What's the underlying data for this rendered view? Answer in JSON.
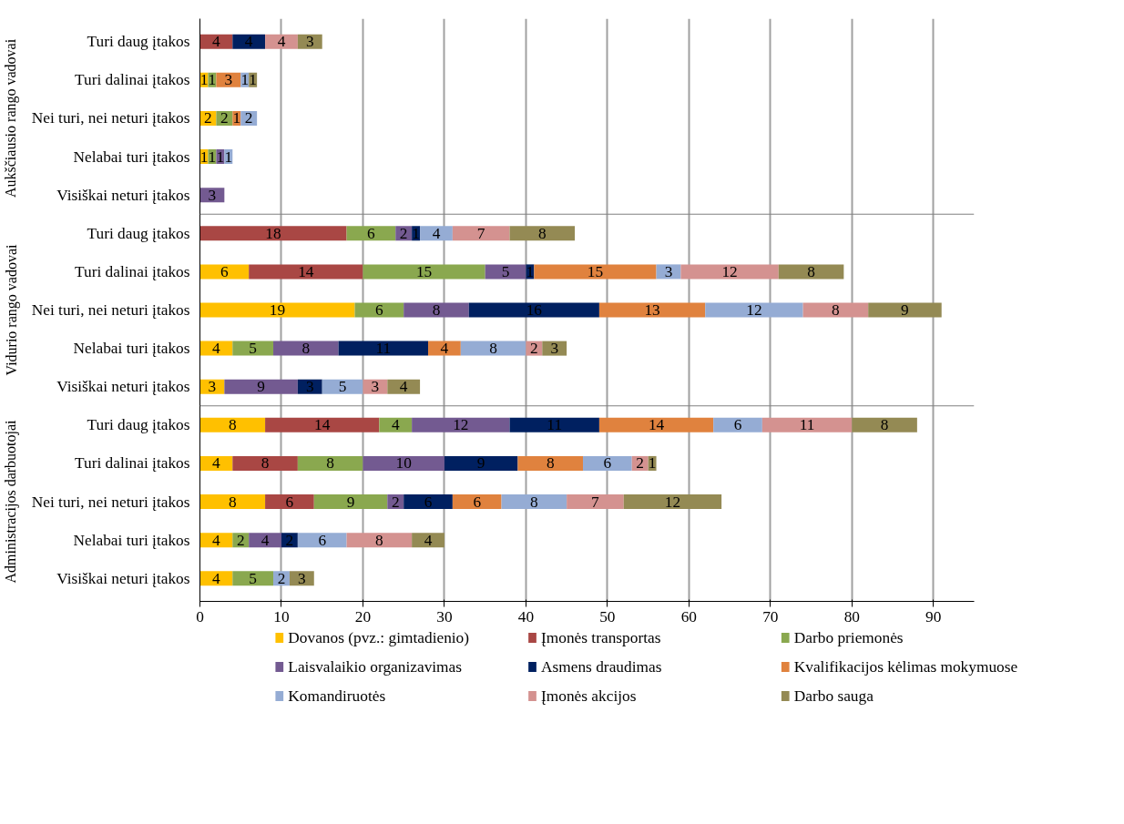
{
  "chart_data": {
    "type": "bar",
    "orientation": "horizontal",
    "stacked": true,
    "data_labels": true,
    "grid": "x",
    "legend": "bottom",
    "categories": [
      "Turi daug įtakos",
      "Turi dalinai įtakos",
      "Nei turi, nei neturi įtakos",
      "Nelabai turi įtakos",
      "Visiškai neturi įtakos",
      "Turi daug įtakos",
      "Turi dalinai įtakos",
      "Nei turi, nei neturi įtakos",
      "Nelabai turi įtakos",
      "Visiškai neturi įtakos",
      "Turi daug įtakos",
      "Turi dalinai įtakos",
      "Nei turi, nei neturi įtakos",
      "Nelabai turi įtakos",
      "Visiškai neturi įtakos"
    ],
    "annotations": [
      "Aukščiausio rango vadovai",
      "Vidurio rango vadovai",
      "Administracijos darbuotojai"
    ],
    "xlim": [
      0,
      95
    ],
    "xticks": [
      0,
      10,
      20,
      30,
      40,
      50,
      60,
      70,
      80,
      90
    ],
    "series": [
      {
        "name": "Dovanos (pvz.: gimtadienio)",
        "color": "#ffc000",
        "values": [
          null,
          1,
          2,
          1,
          null,
          null,
          6,
          19,
          4,
          3,
          8,
          4,
          8,
          4,
          4
        ]
      },
      {
        "name": "Įmonės transportas",
        "color": "#a94744",
        "values": [
          4,
          null,
          null,
          null,
          null,
          18,
          14,
          null,
          null,
          null,
          14,
          8,
          6,
          null,
          null
        ]
      },
      {
        "name": "Darbo priemonės",
        "color": "#8aa84f",
        "values": [
          null,
          1,
          2,
          1,
          null,
          6,
          15,
          6,
          5,
          null,
          4,
          8,
          9,
          2,
          5
        ]
      },
      {
        "name": "Laisvalaikio organizavimas",
        "color": "#735a91",
        "values": [
          null,
          null,
          null,
          1,
          3,
          2,
          5,
          8,
          8,
          9,
          12,
          10,
          2,
          4,
          null
        ]
      },
      {
        "name": "Asmens draudimas",
        "color": "#002060",
        "values": [
          4,
          null,
          null,
          null,
          null,
          1,
          1,
          16,
          11,
          3,
          11,
          9,
          6,
          2,
          null
        ]
      },
      {
        "name": "Kvalifikacijos kėlimas mokymuose",
        "color": "#e0823e",
        "values": [
          null,
          3,
          1,
          null,
          null,
          null,
          15,
          13,
          4,
          null,
          14,
          8,
          6,
          null,
          null
        ]
      },
      {
        "name": "Komandiruotės",
        "color": "#95acd4",
        "values": [
          null,
          1,
          2,
          1,
          null,
          4,
          3,
          12,
          8,
          5,
          6,
          6,
          8,
          6,
          2
        ]
      },
      {
        "name": "Įmonės akcijos",
        "color": "#d49290",
        "values": [
          4,
          null,
          null,
          null,
          null,
          7,
          12,
          8,
          2,
          3,
          11,
          2,
          7,
          8,
          null
        ]
      },
      {
        "name": "Darbo sauga",
        "color": "#948a54",
        "values": [
          3,
          1,
          null,
          null,
          null,
          8,
          8,
          9,
          3,
          4,
          8,
          1,
          12,
          4,
          3
        ]
      }
    ]
  }
}
